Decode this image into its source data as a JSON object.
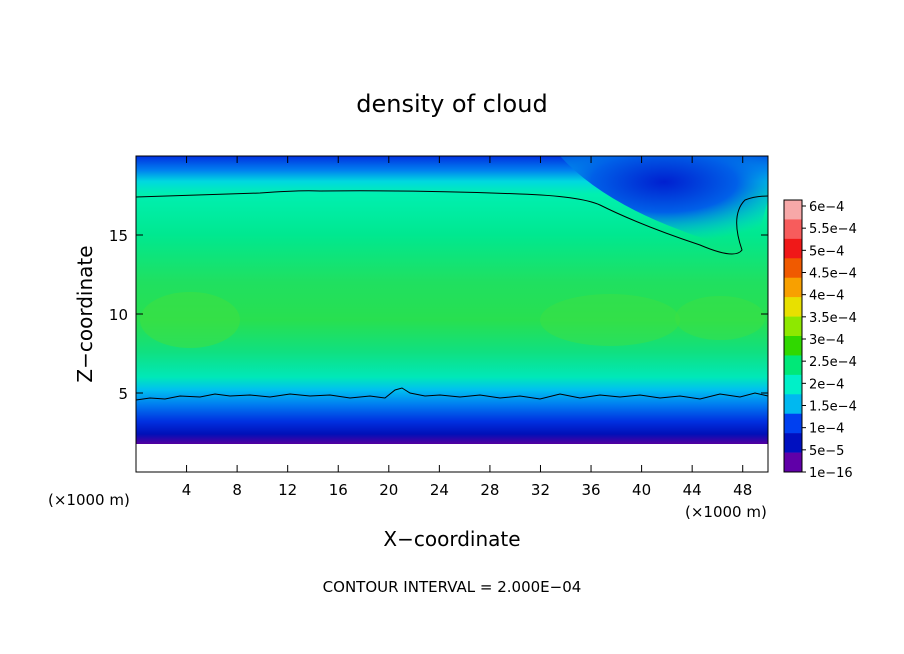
{
  "chart_data": {
    "type": "heatmap",
    "title": "density of cloud",
    "xlabel": "X−coordinate",
    "ylabel": "Z−coordinate",
    "x_unit": "(×1000 m)",
    "z_unit": "(×1000 m)",
    "xlim": [
      0,
      50
    ],
    "ylim": [
      0,
      20
    ],
    "x_ticks": [
      "4",
      "8",
      "12",
      "16",
      "20",
      "24",
      "28",
      "32",
      "36",
      "40",
      "44",
      "48"
    ],
    "x_tick_values": [
      4,
      8,
      12,
      16,
      20,
      24,
      28,
      32,
      36,
      40,
      44,
      48
    ],
    "y_ticks": [
      "5",
      "10",
      "15"
    ],
    "y_tick_values": [
      5,
      10,
      15
    ],
    "footer": "CONTOUR INTERVAL = 2.000E−04",
    "colorbar": {
      "labels": [
        "6e−4",
        "5.5e−4",
        "5e−4",
        "4.5e−4",
        "4e−4",
        "3.5e−4",
        "3e−4",
        "2.5e−4",
        "2e−4",
        "1.5e−4",
        "1e−4",
        "5e−5",
        "1e−16"
      ],
      "colors": [
        "#f7a8a8",
        "#f75c5c",
        "#f01818",
        "#f05a00",
        "#f8a000",
        "#e8e000",
        "#8ee800",
        "#30d800",
        "#00e878",
        "#00f0c8",
        "#00b8f0",
        "#0040f0",
        "#0010c0",
        "#6000a8"
      ]
    },
    "contour_levels": [
      0.0002
    ],
    "grid": false
  }
}
